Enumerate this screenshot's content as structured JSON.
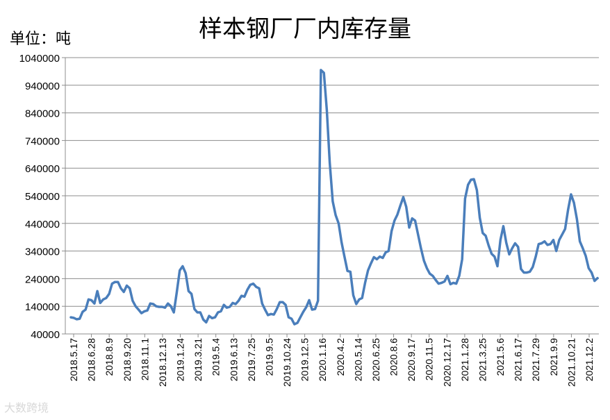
{
  "unit_label": "单位：吨",
  "watermark": "大数跨境",
  "chart_data": {
    "type": "line",
    "title": "样本钢厂厂内库存量",
    "xlabel": "",
    "ylabel": "",
    "ylim": [
      40000,
      1040000
    ],
    "yticks": [
      40000,
      140000,
      240000,
      340000,
      440000,
      540000,
      640000,
      740000,
      840000,
      940000,
      1040000
    ],
    "grid": true,
    "legend": "none",
    "line_color": "#4a7ebb",
    "x_tick_labels": [
      "2018.5.17",
      "2018.6.28",
      "2018.8.9",
      "2018.9.20",
      "2018.11.1",
      "2018.12.13",
      "2019.1.24",
      "2019.3.21",
      "2019.5.4",
      "2019.6.13",
      "2019.7.25",
      "2019.9.5",
      "2019.10.24",
      "2019.12.5",
      "2020.1.16",
      "2020.4.2",
      "2020.5.14",
      "2020.6.25",
      "2020.8.6",
      "2020.9.17",
      "2020.11.5",
      "2020.12.17",
      "2021.1.28",
      "2021.3.25",
      "2021.5.6",
      "2021.6.17",
      "2021.7.29",
      "2021.9.9",
      "2021.10.21",
      "2021.12.2"
    ],
    "series": [
      {
        "values": [
          100000,
          98000,
          93000,
          95000,
          120000,
          128000,
          165000,
          162000,
          150000,
          195000,
          152000,
          165000,
          170000,
          185000,
          222000,
          228000,
          228000,
          205000,
          192000,
          215000,
          205000,
          160000,
          140000,
          128000,
          115000,
          122000,
          125000,
          150000,
          148000,
          140000,
          138000,
          138000,
          135000,
          150000,
          140000,
          118000,
          190000,
          270000,
          285000,
          260000,
          195000,
          185000,
          130000,
          118000,
          118000,
          92000,
          82000,
          105000,
          97000,
          100000,
          118000,
          122000,
          145000,
          135000,
          138000,
          152000,
          148000,
          160000,
          178000,
          175000,
          200000,
          218000,
          222000,
          210000,
          205000,
          150000,
          128000,
          108000,
          112000,
          110000,
          130000,
          155000,
          155000,
          145000,
          100000,
          95000,
          75000,
          80000,
          100000,
          120000,
          137000,
          162000,
          128000,
          130000,
          160000,
          995000,
          985000,
          850000,
          660000,
          520000,
          470000,
          440000,
          372000,
          320000,
          268000,
          265000,
          180000,
          148000,
          165000,
          170000,
          225000,
          270000,
          295000,
          318000,
          310000,
          320000,
          315000,
          335000,
          340000,
          412000,
          450000,
          472000,
          505000,
          535000,
          500000,
          425000,
          458000,
          450000,
          400000,
          350000,
          305000,
          278000,
          258000,
          250000,
          235000,
          222000,
          225000,
          230000,
          250000,
          220000,
          225000,
          222000,
          250000,
          310000,
          530000,
          580000,
          598000,
          600000,
          560000,
          460000,
          405000,
          395000,
          360000,
          330000,
          320000,
          285000,
          380000,
          430000,
          370000,
          328000,
          350000,
          368000,
          355000,
          275000,
          262000,
          262000,
          265000,
          282000,
          320000,
          365000,
          368000,
          375000,
          362000,
          365000,
          380000,
          340000,
          380000,
          400000,
          420000,
          490000,
          545000,
          515000,
          455000,
          375000,
          350000,
          322000,
          278000,
          262000,
          232000,
          242000
        ]
      }
    ]
  }
}
